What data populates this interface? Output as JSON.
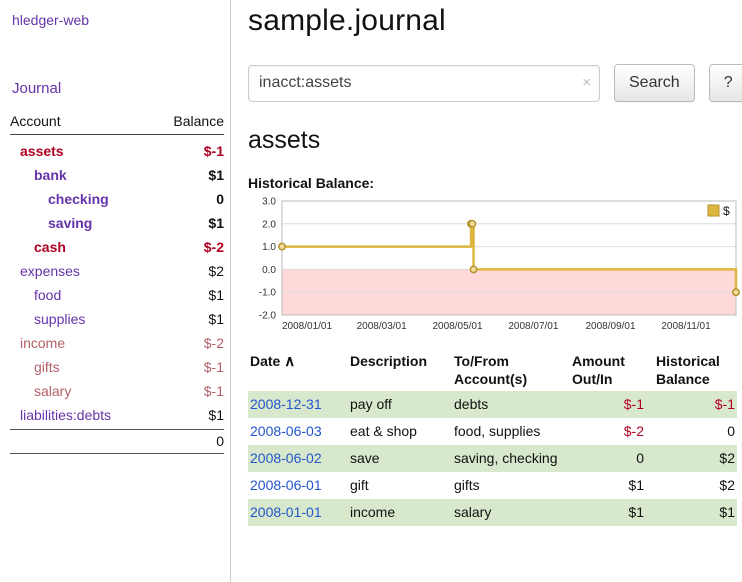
{
  "app": {
    "title": "hledger-web",
    "nav_journal": "Journal"
  },
  "colors": {
    "link_purple": "#6633aa",
    "link_blue": "#2255cc",
    "negative_strong": "#b00020",
    "negative_soft": "#b5606c",
    "row_shade_green": "#d8e8cc",
    "chart_line_gold": "#ddb63f",
    "chart_negative_pink": "#ffd9d9"
  },
  "sidebar": {
    "header": {
      "account": "Account",
      "balance": "Balance"
    },
    "accounts": [
      {
        "name": "assets",
        "balance": "$-1",
        "indent": 1,
        "bold": true,
        "neg": true
      },
      {
        "name": "bank",
        "balance": "$1",
        "indent": 2,
        "bold": true,
        "neg": false
      },
      {
        "name": "checking",
        "balance": "0",
        "indent": 3,
        "bold": true,
        "neg": false
      },
      {
        "name": "saving",
        "balance": "$1",
        "indent": 3,
        "bold": true,
        "neg": false
      },
      {
        "name": "cash",
        "balance": "$-2",
        "indent": 2,
        "bold": true,
        "neg": true
      },
      {
        "name": "expenses",
        "balance": "$2",
        "indent": 1,
        "bold": false,
        "neg": false
      },
      {
        "name": "food",
        "balance": "$1",
        "indent": 2,
        "bold": false,
        "neg": false
      },
      {
        "name": "supplies",
        "balance": "$1",
        "indent": 2,
        "bold": false,
        "neg": false
      },
      {
        "name": "income",
        "balance": "$-2",
        "indent": 1,
        "bold": false,
        "neg": true
      },
      {
        "name": "gifts",
        "balance": "$-1",
        "indent": 2,
        "bold": false,
        "neg": true
      },
      {
        "name": "salary",
        "balance": "$-1",
        "indent": 2,
        "bold": false,
        "neg": true
      },
      {
        "name": "liabilities:debts",
        "balance": "$1",
        "indent": 1,
        "bold": false,
        "neg": false
      }
    ],
    "total": "0"
  },
  "main": {
    "title": "sample.journal",
    "search": {
      "value": "inacct:assets",
      "clear_icon": "×",
      "button": "Search",
      "help_button": "?"
    },
    "account_heading": "assets",
    "chart_label": "Historical Balance:"
  },
  "chart_data": {
    "type": "line",
    "step": true,
    "title": "Historical Balance",
    "legend_label": "$",
    "legend_position": "top-right",
    "grid": true,
    "x_domain": [
      "2008-01-01",
      "2008-12-31"
    ],
    "xticks": [
      "2008/01/01",
      "2008/03/01",
      "2008/05/01",
      "2008/07/01",
      "2008/09/01",
      "2008/11/01"
    ],
    "ylim": [
      -2,
      3
    ],
    "yticks": [
      3.0,
      2.0,
      1.0,
      0.0,
      -1.0,
      -2.0
    ],
    "points": [
      {
        "date": "2008-01-01",
        "value": 1
      },
      {
        "date": "2008-06-01",
        "value": 2
      },
      {
        "date": "2008-06-02",
        "value": 2
      },
      {
        "date": "2008-06-03",
        "value": 0
      },
      {
        "date": "2008-12-31",
        "value": -1
      }
    ],
    "line_color": "#ddb63f",
    "marker_fill": "#f2dc9c",
    "marker_stroke": "#b6922e",
    "negative_region_color": "#ffd9d9",
    "grid_color": "#dddddd",
    "border_color": "#bbbbbb"
  },
  "table": {
    "sort_icon": "∧",
    "headers": [
      {
        "line1": "Date",
        "line2": ""
      },
      {
        "line1": "Description",
        "line2": ""
      },
      {
        "line1": "To/From",
        "line2": "Account(s)"
      },
      {
        "line1": "Amount",
        "line2": "Out/In"
      },
      {
        "line1": "Historical",
        "line2": "Balance"
      }
    ],
    "rows": [
      {
        "date": "2008-12-31",
        "description": "pay off",
        "accounts": "debts",
        "amount": "$-1",
        "balance": "$-1",
        "amount_neg": true,
        "balance_neg": true,
        "shaded": true
      },
      {
        "date": "2008-06-03",
        "description": "eat & shop",
        "accounts": "food, supplies",
        "amount": "$-2",
        "balance": "0",
        "amount_neg": true,
        "balance_neg": false,
        "shaded": false
      },
      {
        "date": "2008-06-02",
        "description": "save",
        "accounts": "saving, checking",
        "amount": "0",
        "balance": "$2",
        "amount_neg": false,
        "balance_neg": false,
        "shaded": true
      },
      {
        "date": "2008-06-01",
        "description": "gift",
        "accounts": "gifts",
        "amount": "$1",
        "balance": "$2",
        "amount_neg": false,
        "balance_neg": false,
        "shaded": false
      },
      {
        "date": "2008-01-01",
        "description": "income",
        "accounts": "salary",
        "amount": "$1",
        "balance": "$1",
        "amount_neg": false,
        "balance_neg": false,
        "shaded": true
      }
    ]
  }
}
